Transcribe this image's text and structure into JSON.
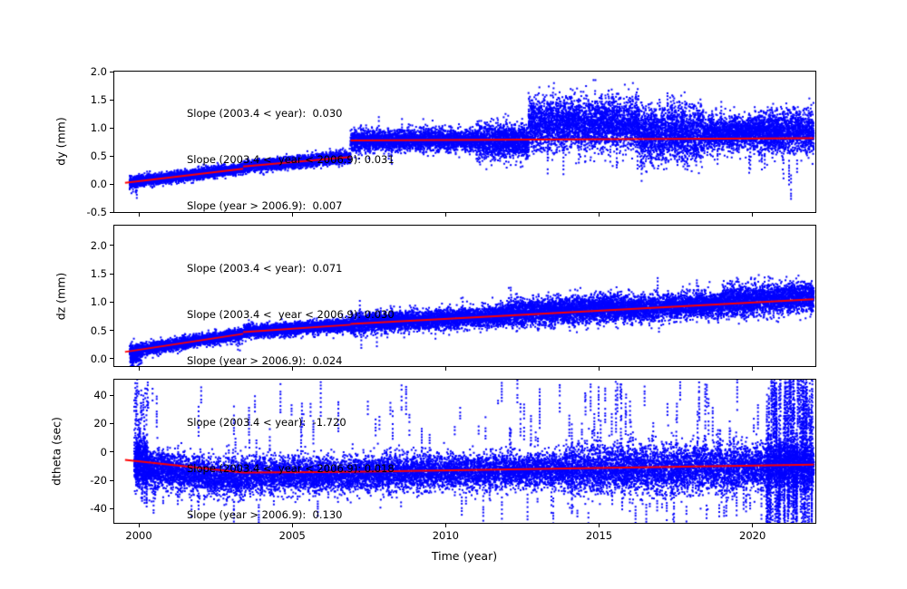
{
  "xlabel": "Time (year)",
  "chart_data": {
    "type": "scatter",
    "seed": 7,
    "x_axis": {
      "label": "Time (year)",
      "lim": [
        1999.2,
        2022.05
      ],
      "ticks": [
        2000,
        2005,
        2010,
        2015,
        2020
      ]
    },
    "colors": {
      "points": "#0000ff",
      "trend": "#ff0000",
      "axis": "#000000",
      "background": "#ffffff"
    },
    "panels": [
      {
        "name": "dy",
        "ylabel": "dy (mm)",
        "ylim": [
          -0.5,
          2.0
        ],
        "yticks": [
          "-0.5",
          "0.0",
          "0.5",
          "1.0",
          "1.5",
          "2.0"
        ],
        "annotations": [
          "Slope (2003.4 < year):  0.030",
          "Slope (2003.4 <  year < 2006.9): 0.031",
          "Slope (year > 2006.9):  0.007"
        ],
        "trend_segments": [
          [
            [
              1999.55,
              0.02
            ],
            [
              2003.4,
              0.27
            ]
          ],
          [
            [
              2003.4,
              0.31
            ],
            [
              2006.9,
              0.48
            ]
          ],
          [
            [
              2006.9,
              0.775
            ],
            [
              2022.0,
              0.815
            ]
          ]
        ],
        "scatter_bands": [
          [
            1999.7,
            2000.05,
            300,
            0.05,
            0
          ],
          [
            2000.05,
            2003.4,
            2600,
            0.045,
            0
          ],
          [
            2003.4,
            2006.9,
            2700,
            0.05,
            0
          ],
          [
            2006.9,
            2011.0,
            3200,
            0.09,
            0
          ],
          [
            2011.0,
            2012.7,
            1500,
            0.15,
            -0.03
          ],
          [
            2012.7,
            2016.3,
            3200,
            0.22,
            0.28
          ],
          [
            2016.3,
            2018.4,
            1900,
            0.24,
            0.08
          ],
          [
            2018.4,
            2020.2,
            1500,
            0.14,
            0.1
          ],
          [
            2020.2,
            2022.0,
            1600,
            0.19,
            0.12
          ]
        ],
        "streaks": [
          {
            "x0": 1999.7,
            "x1": 1999.95,
            "count": 5,
            "mode": "rel",
            "c_min": -0.22,
            "c_max": -0.08,
            "len_min": 0.1,
            "len_max": 0.2
          },
          {
            "x0": 2007.0,
            "x1": 2012.5,
            "count": 10,
            "mode": "rel",
            "c_min": -0.25,
            "c_max": 0.3,
            "len_min": 0.2,
            "len_max": 0.5
          },
          {
            "x0": 2012.7,
            "x1": 2018.4,
            "count": 22,
            "mode": "rel",
            "c_min": -0.45,
            "c_max": 0.7,
            "len_min": 0.3,
            "len_max": 0.9
          },
          {
            "x0": 2018.5,
            "x1": 2022.0,
            "count": 12,
            "mode": "rel",
            "c_min": -0.5,
            "c_max": 0.5,
            "len_min": 0.2,
            "len_max": 0.7
          },
          {
            "x0": 2021.0,
            "x1": 2021.4,
            "count": 3,
            "mode": "rel",
            "c_min": -0.9,
            "c_max": -0.5,
            "len_min": 0.3,
            "len_max": 0.5
          }
        ]
      },
      {
        "name": "dz",
        "ylabel": "dz (mm)",
        "ylim": [
          -0.13,
          2.35
        ],
        "yticks": [
          "0.0",
          "0.5",
          "1.0",
          "1.5",
          "2.0"
        ],
        "annotations": [
          "Slope (2003.4 < year):  0.071",
          "Slope (2003.4 <  year < 2006.9): 0.030",
          "Slope (year > 2006.9):  0.024"
        ],
        "trend_segments": [
          [
            [
              1999.55,
              0.12
            ],
            [
              2003.4,
              0.44
            ]
          ],
          [
            [
              2003.4,
              0.47
            ],
            [
              2006.9,
              0.6
            ]
          ],
          [
            [
              2006.9,
              0.615
            ],
            [
              2022.0,
              1.05
            ]
          ]
        ],
        "scatter_bands": [
          [
            1999.7,
            2000.1,
            350,
            0.09,
            -0.06
          ],
          [
            2000.1,
            2003.4,
            2700,
            0.05,
            0
          ],
          [
            2003.4,
            2006.9,
            2700,
            0.055,
            0
          ],
          [
            2006.9,
            2012.0,
            4000,
            0.085,
            0
          ],
          [
            2012.0,
            2016.0,
            3300,
            0.12,
            0.04
          ],
          [
            2016.0,
            2019.0,
            2400,
            0.11,
            0
          ],
          [
            2019.0,
            2022.0,
            2500,
            0.13,
            0.04
          ]
        ],
        "streaks": [
          {
            "x0": 1999.72,
            "x1": 1999.85,
            "count": 3,
            "mode": "rel",
            "c_min": -0.35,
            "c_max": -0.15,
            "len_min": 0.1,
            "len_max": 0.25
          },
          {
            "x0": 2003.2,
            "x1": 2003.5,
            "count": 3,
            "mode": "rel",
            "c_min": -0.35,
            "c_max": -0.2,
            "len_min": 0.1,
            "len_max": 0.2
          },
          {
            "x0": 2007.0,
            "x1": 2022.0,
            "count": 30,
            "mode": "rel",
            "c_min": -0.3,
            "c_max": 0.4,
            "len_min": 0.15,
            "len_max": 0.45
          }
        ]
      },
      {
        "name": "dtheta",
        "ylabel": "dtheta (sec)",
        "ylim": [
          -50,
          51
        ],
        "yticks": [
          "-40",
          "-20",
          "0",
          "20",
          "40"
        ],
        "annotations": [
          "Slope (2003.4 < year):  -1.720",
          "Slope (2003.4 <  year < 2006.9): 0.018",
          "Slope (year > 2006.9):  0.130"
        ],
        "trend_segments": [
          [
            [
              1999.55,
              -5.5
            ],
            [
              2003.4,
              -14.5
            ]
          ],
          [
            [
              2003.4,
              -14.5
            ],
            [
              2006.9,
              -14.0
            ]
          ],
          [
            [
              2006.9,
              -14.0
            ],
            [
              2022.0,
              -9.0
            ]
          ]
        ],
        "scatter_bands": [
          [
            1999.85,
            2000.3,
            700,
            9,
            -2
          ],
          [
            2000.3,
            2003.4,
            2300,
            6.5,
            -5
          ],
          [
            2003.4,
            2006.9,
            2500,
            6,
            -2
          ],
          [
            2006.9,
            2014.0,
            5000,
            6,
            -1
          ],
          [
            2014.0,
            2020.4,
            4600,
            8,
            -1
          ],
          [
            2020.4,
            2022.0,
            1500,
            8,
            0
          ]
        ],
        "streaks": [
          {
            "x0": 1999.85,
            "x1": 2000.35,
            "count": 40,
            "mode": "abs",
            "c_min": -32,
            "c_max": 44,
            "len_min": 5,
            "len_max": 22
          },
          {
            "x0": 2000.4,
            "x1": 2020.4,
            "count": 150,
            "mode": "abs",
            "c_min": -46,
            "c_max": 45,
            "len_min": 4,
            "len_max": 28
          },
          {
            "x0": 2014.0,
            "x1": 2020.4,
            "count": 60,
            "mode": "abs",
            "c_min": -47,
            "c_max": 45,
            "len_min": 6,
            "len_max": 30
          },
          {
            "x0": 2020.45,
            "x1": 2021.95,
            "count": 170,
            "mode": "abs",
            "c_min": -45,
            "c_max": 47,
            "len_min": 12,
            "len_max": 70
          }
        ]
      }
    ]
  }
}
